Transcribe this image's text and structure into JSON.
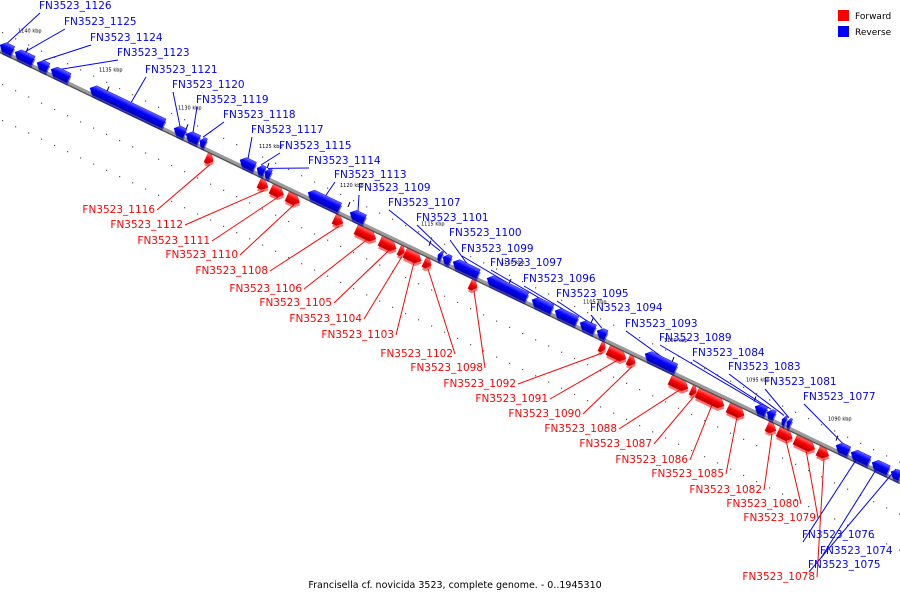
{
  "caption": "Francisella cf. novicida 3523, complete genome. - 0..1945310",
  "legend": [
    {
      "label": "Forward",
      "color": "#ff0000"
    },
    {
      "label": "Reverse",
      "color": "#0000ff"
    }
  ],
  "colors": {
    "forward": "#ff0000",
    "reverse": "#0000ff",
    "backbone": "#808080"
  },
  "ticks": [
    "1140 kbp",
    "1135 kbp",
    "1130 kbp",
    "1125 kbp",
    "1120 kbp",
    "1115 kbp",
    "1110 kbp",
    "1105 kbp",
    "1100 kbp",
    "1095 kbp",
    "1090 kbp"
  ],
  "genes": [
    {
      "name": "FN3523_1126",
      "strand": "reverse"
    },
    {
      "name": "FN3523_1125",
      "strand": "reverse"
    },
    {
      "name": "FN3523_1124",
      "strand": "reverse"
    },
    {
      "name": "FN3523_1123",
      "strand": "reverse"
    },
    {
      "name": "FN3523_1121",
      "strand": "reverse"
    },
    {
      "name": "FN3523_1120",
      "strand": "reverse"
    },
    {
      "name": "FN3523_1119",
      "strand": "reverse"
    },
    {
      "name": "FN3523_1118",
      "strand": "reverse"
    },
    {
      "name": "FN3523_1117",
      "strand": "reverse"
    },
    {
      "name": "FN3523_1115",
      "strand": "reverse"
    },
    {
      "name": "FN3523_1114",
      "strand": "reverse"
    },
    {
      "name": "FN3523_1113",
      "strand": "reverse"
    },
    {
      "name": "FN3523_1109",
      "strand": "reverse"
    },
    {
      "name": "FN3523_1107",
      "strand": "reverse"
    },
    {
      "name": "FN3523_1101",
      "strand": "reverse"
    },
    {
      "name": "FN3523_1100",
      "strand": "reverse"
    },
    {
      "name": "FN3523_1099",
      "strand": "reverse"
    },
    {
      "name": "FN3523_1097",
      "strand": "reverse"
    },
    {
      "name": "FN3523_1096",
      "strand": "reverse"
    },
    {
      "name": "FN3523_1095",
      "strand": "reverse"
    },
    {
      "name": "FN3523_1094",
      "strand": "reverse"
    },
    {
      "name": "FN3523_1093",
      "strand": "reverse"
    },
    {
      "name": "FN3523_1089",
      "strand": "reverse"
    },
    {
      "name": "FN3523_1084",
      "strand": "reverse"
    },
    {
      "name": "FN3523_1083",
      "strand": "reverse"
    },
    {
      "name": "FN3523_1081",
      "strand": "reverse"
    },
    {
      "name": "FN3523_1077",
      "strand": "reverse"
    },
    {
      "name": "FN3523_1076",
      "strand": "reverse"
    },
    {
      "name": "FN3523_1074",
      "strand": "reverse"
    },
    {
      "name": "FN3523_1075",
      "strand": "reverse"
    },
    {
      "name": "FN3523_1116",
      "strand": "forward"
    },
    {
      "name": "FN3523_1112",
      "strand": "forward"
    },
    {
      "name": "FN3523_1111",
      "strand": "forward"
    },
    {
      "name": "FN3523_1110",
      "strand": "forward"
    },
    {
      "name": "FN3523_1108",
      "strand": "forward"
    },
    {
      "name": "FN3523_1106",
      "strand": "forward"
    },
    {
      "name": "FN3523_1105",
      "strand": "forward"
    },
    {
      "name": "FN3523_1104",
      "strand": "forward"
    },
    {
      "name": "FN3523_1103",
      "strand": "forward"
    },
    {
      "name": "FN3523_1102",
      "strand": "forward"
    },
    {
      "name": "FN3523_1098",
      "strand": "forward"
    },
    {
      "name": "FN3523_1092",
      "strand": "forward"
    },
    {
      "name": "FN3523_1091",
      "strand": "forward"
    },
    {
      "name": "FN3523_1090",
      "strand": "forward"
    },
    {
      "name": "FN3523_1088",
      "strand": "forward"
    },
    {
      "name": "FN3523_1087",
      "strand": "forward"
    },
    {
      "name": "FN3523_1086",
      "strand": "forward"
    },
    {
      "name": "FN3523_1085",
      "strand": "forward"
    },
    {
      "name": "FN3523_1082",
      "strand": "forward"
    },
    {
      "name": "FN3523_1080",
      "strand": "forward"
    },
    {
      "name": "FN3523_1079",
      "strand": "forward"
    },
    {
      "name": "FN3523_1078",
      "strand": "forward"
    }
  ]
}
